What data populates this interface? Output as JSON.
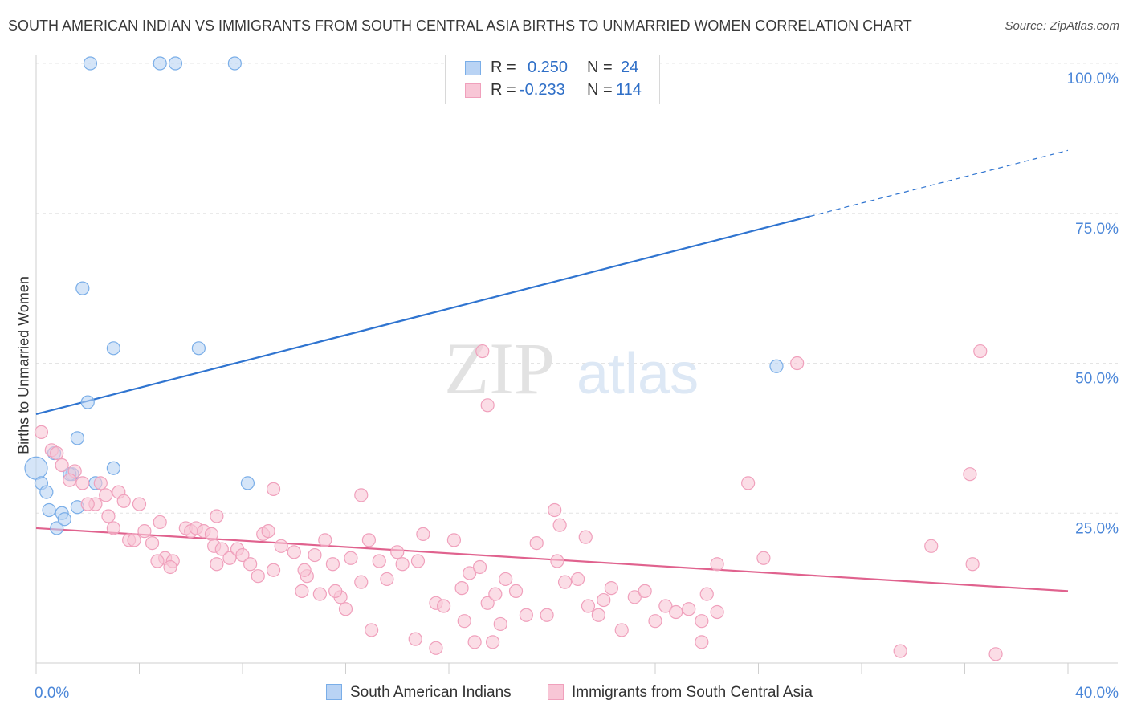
{
  "chart_data": {
    "type": "scatter",
    "title": "SOUTH AMERICAN INDIAN VS IMMIGRANTS FROM SOUTH CENTRAL ASIA BIRTHS TO UNMARRIED WOMEN CORRELATION CHART",
    "source": "Source: ZipAtlas.com",
    "xlabel": "",
    "ylabel": "Births to Unmarried Women",
    "xlim": [
      0,
      40
    ],
    "ylim": [
      0,
      100
    ],
    "x_tick_labels": [
      "0.0%",
      "40.0%"
    ],
    "y_tick_labels": [
      "100.0%",
      "75.0%",
      "50.0%",
      "25.0%"
    ],
    "y_ticks": [
      100,
      75,
      50,
      25
    ],
    "watermark": "ZIPatlas",
    "legend": {
      "rows": [
        {
          "r_label": "R =",
          "r_value": "0.250",
          "n_label": "N =",
          "n_value": "24"
        },
        {
          "r_label": "R =",
          "r_value": "-0.233",
          "n_label": "N =",
          "n_value": "114"
        }
      ]
    },
    "series": [
      {
        "name": "South American Indians",
        "color": "#7aaee8",
        "fill": "#b9d3f4",
        "line_color": "#2f74d0",
        "trend": {
          "x0": 0,
          "y0": 41.5,
          "x1": 30,
          "y1": 74.5,
          "dash_to_x": 40,
          "dash_to_y": 85.5
        },
        "points": [
          [
            2.1,
            100
          ],
          [
            4.8,
            100
          ],
          [
            5.4,
            100
          ],
          [
            7.7,
            100
          ],
          [
            1.8,
            62.5
          ],
          [
            3.0,
            52.5
          ],
          [
            6.3,
            52.5
          ],
          [
            2.0,
            43.5
          ],
          [
            1.6,
            37.5
          ],
          [
            28.7,
            49.5
          ],
          [
            0.0,
            32.5
          ],
          [
            0.7,
            35.0
          ],
          [
            1.4,
            31.5
          ],
          [
            3.0,
            32.5
          ],
          [
            0.2,
            30.0
          ],
          [
            0.4,
            28.5
          ],
          [
            2.3,
            30.0
          ],
          [
            8.2,
            30.0
          ],
          [
            0.5,
            25.5
          ],
          [
            1.0,
            25.0
          ],
          [
            1.6,
            26.0
          ],
          [
            0.8,
            22.5
          ],
          [
            1.1,
            24.0
          ],
          [
            1.3,
            31.5
          ]
        ]
      },
      {
        "name": "Immigrants from South Central Asia",
        "color": "#f0a0bc",
        "fill": "#f8c6d6",
        "line_color": "#e0628e",
        "trend": {
          "x0": 0,
          "y0": 22.5,
          "x1": 40,
          "y1": 12.0
        },
        "points": [
          [
            0.2,
            38.5
          ],
          [
            0.6,
            35.5
          ],
          [
            0.8,
            35.0
          ],
          [
            1.0,
            33.0
          ],
          [
            1.5,
            32.0
          ],
          [
            1.3,
            30.5
          ],
          [
            1.8,
            30.0
          ],
          [
            2.5,
            30.0
          ],
          [
            2.7,
            28.0
          ],
          [
            3.2,
            28.5
          ],
          [
            3.4,
            27.0
          ],
          [
            2.3,
            26.5
          ],
          [
            2.0,
            26.5
          ],
          [
            4.0,
            26.5
          ],
          [
            2.8,
            24.5
          ],
          [
            3.0,
            22.5
          ],
          [
            3.6,
            20.5
          ],
          [
            4.2,
            22.0
          ],
          [
            3.8,
            20.5
          ],
          [
            4.5,
            20.0
          ],
          [
            4.8,
            23.5
          ],
          [
            5.0,
            17.5
          ],
          [
            4.7,
            17.0
          ],
          [
            5.3,
            17.0
          ],
          [
            5.8,
            22.5
          ],
          [
            6.0,
            22.0
          ],
          [
            6.2,
            22.5
          ],
          [
            6.5,
            22.0
          ],
          [
            6.8,
            21.5
          ],
          [
            6.9,
            19.5
          ],
          [
            7.2,
            19.0
          ],
          [
            7.5,
            17.5
          ],
          [
            7.8,
            19.0
          ],
          [
            8.0,
            18.0
          ],
          [
            8.3,
            16.5
          ],
          [
            8.6,
            14.5
          ],
          [
            7.0,
            16.5
          ],
          [
            8.8,
            21.5
          ],
          [
            9.2,
            15.5
          ],
          [
            9.5,
            19.5
          ],
          [
            10.0,
            18.5
          ],
          [
            10.5,
            14.5
          ],
          [
            10.8,
            18.0
          ],
          [
            11.2,
            20.5
          ],
          [
            11.5,
            16.5
          ],
          [
            11.8,
            11.0
          ],
          [
            12.2,
            17.5
          ],
          [
            12.6,
            13.5
          ],
          [
            12.9,
            20.5
          ],
          [
            13.3,
            17.0
          ],
          [
            13.6,
            14.0
          ],
          [
            14.0,
            18.5
          ],
          [
            14.2,
            16.5
          ],
          [
            14.8,
            17.0
          ],
          [
            15.0,
            21.5
          ],
          [
            15.5,
            10.0
          ],
          [
            15.8,
            9.5
          ],
          [
            16.2,
            20.5
          ],
          [
            16.5,
            12.5
          ],
          [
            16.8,
            15.0
          ],
          [
            17.2,
            16.0
          ],
          [
            17.5,
            10.0
          ],
          [
            17.8,
            11.5
          ],
          [
            18.2,
            14.0
          ],
          [
            18.6,
            12.0
          ],
          [
            19.0,
            8.0
          ],
          [
            19.4,
            20.0
          ],
          [
            19.8,
            8.0
          ],
          [
            20.2,
            17.0
          ],
          [
            20.5,
            13.5
          ],
          [
            21.0,
            14.0
          ],
          [
            21.4,
            9.5
          ],
          [
            21.8,
            8.0
          ],
          [
            22.0,
            10.5
          ],
          [
            22.3,
            12.5
          ],
          [
            22.7,
            5.5
          ],
          [
            23.2,
            11.0
          ],
          [
            23.6,
            12.0
          ],
          [
            24.0,
            7.0
          ],
          [
            24.4,
            9.5
          ],
          [
            24.8,
            8.5
          ],
          [
            25.3,
            9.0
          ],
          [
            26.0,
            11.5
          ],
          [
            26.4,
            8.5
          ],
          [
            12.0,
            9.0
          ],
          [
            11.0,
            11.5
          ],
          [
            13.0,
            5.5
          ],
          [
            14.7,
            4.0
          ],
          [
            15.5,
            2.5
          ],
          [
            17.0,
            3.5
          ],
          [
            17.7,
            3.5
          ],
          [
            10.4,
            15.5
          ],
          [
            18.0,
            6.5
          ],
          [
            11.6,
            12.0
          ],
          [
            17.3,
            52.0
          ],
          [
            20.1,
            25.5
          ],
          [
            26.4,
            16.5
          ],
          [
            27.6,
            30.0
          ],
          [
            29.5,
            50.0
          ],
          [
            34.7,
            19.5
          ],
          [
            36.6,
            52.0
          ],
          [
            36.2,
            31.5
          ],
          [
            12.6,
            28.0
          ],
          [
            20.3,
            23.0
          ],
          [
            21.3,
            21.0
          ],
          [
            25.8,
            7.0
          ],
          [
            28.2,
            17.5
          ],
          [
            9.2,
            29.0
          ],
          [
            33.5,
            2.0
          ],
          [
            37.2,
            1.5
          ],
          [
            36.3,
            16.5
          ],
          [
            17.5,
            43.0
          ],
          [
            7.0,
            24.5
          ],
          [
            9.0,
            22.0
          ],
          [
            5.2,
            16.0
          ],
          [
            10.3,
            12.0
          ],
          [
            16.6,
            7.0
          ],
          [
            25.8,
            3.5
          ]
        ]
      }
    ]
  },
  "bottom_legend": {
    "items": [
      {
        "label": "South American Indians"
      },
      {
        "label": "Immigrants from South Central Asia"
      }
    ]
  }
}
